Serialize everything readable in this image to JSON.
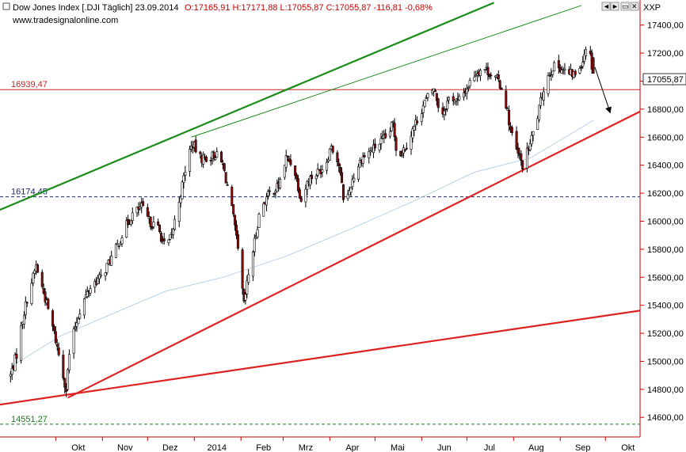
{
  "header": {
    "title": "Dow Jones Index [.DJI  Täglich] 23.09.2014",
    "ohlc": "O:17165,91 H:17171,88 L:17055,87 C:17055,87 -116,81 -0,68%",
    "source": "www.tradesignalonline.com",
    "axis_label": "XXP",
    "window_buttons": [
      "◄",
      "►",
      "▭",
      "✕"
    ]
  },
  "last_price_label": "17055,87",
  "chart_data": {
    "type": "candlestick",
    "title": "Dow Jones Index [.DJI  Täglich] 23.09.2014",
    "ylim": [
      14460,
      17500
    ],
    "y_ticks": [
      14600,
      14800,
      15000,
      15200,
      15400,
      15600,
      15800,
      16000,
      16200,
      16400,
      16600,
      16800,
      17000,
      17200,
      17400
    ],
    "y_tick_labels": [
      "14600,00",
      "14800,00",
      "15000,00",
      "15200,00",
      "15400,00",
      "15600,00",
      "15800,00",
      "16000,00",
      "16200,00",
      "16400,00",
      "16600,00",
      "16800,00",
      "17000,00",
      "17200,00",
      "17400,00"
    ],
    "x_ticks": [
      "Okt",
      "Nov",
      "Dez",
      "2014",
      "Feb",
      "Mrz",
      "Apr",
      "Mai",
      "Jun",
      "Jul",
      "Aug",
      "Sep",
      "Okt"
    ],
    "x_tick_days": [
      30,
      61,
      91,
      122,
      153,
      181,
      212,
      242,
      273,
      303,
      334,
      365,
      395
    ],
    "x_tick_days_reference": "2013-09-01",
    "grid": false,
    "close_anchors": [
      [
        "2013-09-01",
        14900
      ],
      [
        "2013-09-05",
        15050
      ],
      [
        "2013-09-09",
        15300
      ],
      [
        "2013-09-12",
        15450
      ],
      [
        "2013-09-18",
        15680
      ],
      [
        "2013-09-24",
        15450
      ],
      [
        "2013-09-30",
        15200
      ],
      [
        "2013-10-04",
        15000
      ],
      [
        "2013-10-08",
        14800
      ],
      [
        "2013-10-10",
        15050
      ],
      [
        "2013-10-14",
        15250
      ],
      [
        "2013-10-18",
        15400
      ],
      [
        "2013-10-25",
        15550
      ],
      [
        "2013-10-31",
        15600
      ],
      [
        "2013-11-05",
        15700
      ],
      [
        "2013-11-10",
        15800
      ],
      [
        "2013-11-16",
        15950
      ],
      [
        "2013-11-21",
        16050
      ],
      [
        "2013-11-27",
        16100
      ],
      [
        "2013-12-02",
        16000
      ],
      [
        "2013-12-08",
        15950
      ],
      [
        "2013-12-13",
        15800
      ],
      [
        "2013-12-17",
        15900
      ],
      [
        "2013-12-23",
        16200
      ],
      [
        "2013-12-28",
        16480
      ],
      [
        "2013-12-31",
        16550
      ],
      [
        "2014-01-05",
        16450
      ],
      [
        "2014-01-10",
        16450
      ],
      [
        "2014-01-15",
        16480
      ],
      [
        "2014-01-20",
        16400
      ],
      [
        "2014-01-25",
        16150
      ],
      [
        "2014-01-28",
        15950
      ],
      [
        "2014-01-31",
        15700
      ],
      [
        "2014-02-03",
        15400
      ],
      [
        "2014-02-06",
        15620
      ],
      [
        "2014-02-10",
        15850
      ],
      [
        "2014-02-14",
        16100
      ],
      [
        "2014-02-20",
        16200
      ],
      [
        "2014-02-26",
        16250
      ],
      [
        "2014-03-03",
        16450
      ],
      [
        "2014-03-08",
        16400
      ],
      [
        "2014-03-13",
        16150
      ],
      [
        "2014-03-18",
        16300
      ],
      [
        "2014-03-24",
        16350
      ],
      [
        "2014-03-29",
        16400
      ],
      [
        "2014-04-02",
        16550
      ],
      [
        "2014-04-07",
        16400
      ],
      [
        "2014-04-11",
        16100
      ],
      [
        "2014-04-16",
        16300
      ],
      [
        "2014-04-22",
        16450
      ],
      [
        "2014-04-28",
        16500
      ],
      [
        "2014-05-03",
        16550
      ],
      [
        "2014-05-09",
        16600
      ],
      [
        "2014-05-13",
        16700
      ],
      [
        "2014-05-16",
        16450
      ],
      [
        "2014-05-22",
        16550
      ],
      [
        "2014-05-28",
        16700
      ],
      [
        "2014-06-03",
        16850
      ],
      [
        "2014-06-09",
        16950
      ],
      [
        "2014-06-14",
        16750
      ],
      [
        "2014-06-20",
        16900
      ],
      [
        "2014-06-25",
        16850
      ],
      [
        "2014-07-01",
        16950
      ],
      [
        "2014-07-06",
        17050
      ],
      [
        "2014-07-12",
        17100
      ],
      [
        "2014-07-17",
        17050
      ],
      [
        "2014-07-22",
        17000
      ],
      [
        "2014-07-26",
        16900
      ],
      [
        "2014-07-30",
        16650
      ],
      [
        "2014-08-03",
        16500
      ],
      [
        "2014-08-07",
        16400
      ],
      [
        "2014-08-12",
        16550
      ],
      [
        "2014-08-17",
        16750
      ],
      [
        "2014-08-22",
        17000
      ],
      [
        "2014-08-27",
        17100
      ],
      [
        "2014-09-01",
        17100
      ],
      [
        "2014-09-06",
        17050
      ],
      [
        "2014-09-11",
        17050
      ],
      [
        "2014-09-16",
        17150
      ],
      [
        "2014-09-19",
        17300
      ],
      [
        "2014-09-23",
        17055.87
      ]
    ],
    "moving_average": [
      [
        "2013-09-01",
        14960
      ],
      [
        "2013-10-04",
        15180
      ],
      [
        "2013-11-10",
        15350
      ],
      [
        "2013-12-13",
        15500
      ],
      [
        "2014-01-20",
        15600
      ],
      [
        "2014-03-03",
        15750
      ],
      [
        "2014-04-16",
        15950
      ],
      [
        "2014-05-28",
        16150
      ],
      [
        "2014-07-06",
        16350
      ],
      [
        "2014-08-12",
        16450
      ],
      [
        "2014-09-23",
        16720
      ]
    ],
    "horizontal_levels": [
      {
        "label": "16939,47",
        "value": 16939.47,
        "style": "solid",
        "color": "#cc2222"
      },
      {
        "label": "16174,45",
        "value": 16174.45,
        "style": "dashed",
        "color": "#1a2a6c"
      },
      {
        "label": "14551,27",
        "value": 14551.27,
        "style": "dashed",
        "color": "#1e7a1e"
      }
    ],
    "trendlines": [
      {
        "name": "upper-channel-thick",
        "color": "#1a8c1a",
        "start": [
          "2013-08-18",
          16050
        ],
        "end": [
          "2014-07-19",
          17560
        ]
      },
      {
        "name": "upper-channel-thin",
        "color": "#1a8c1a",
        "start": [
          "2013-12-30",
          16600
        ],
        "end": [
          "2014-09-15",
          17540
        ]
      },
      {
        "name": "rising-support-steep",
        "color": "#dd2222",
        "start": [
          "2013-10-09",
          14740
        ],
        "end": [
          "2014-10-29",
          16810
        ]
      },
      {
        "name": "rising-support-flat",
        "color": "#dd2222",
        "start": [
          "2013-08-18",
          14680
        ],
        "end": [
          "2014-10-29",
          15370
        ]
      }
    ],
    "arrow": {
      "start": [
        "2014-09-24",
        17100
      ],
      "end": [
        "2014-10-04",
        16780
      ]
    }
  },
  "colors": {
    "up_candle": "#ffffff",
    "down_candle": "#8b0a0a",
    "wick": "#000000",
    "ma_line": "#b8d0e8",
    "axis": "#cc0000",
    "last_price_box": "#ffffff"
  }
}
